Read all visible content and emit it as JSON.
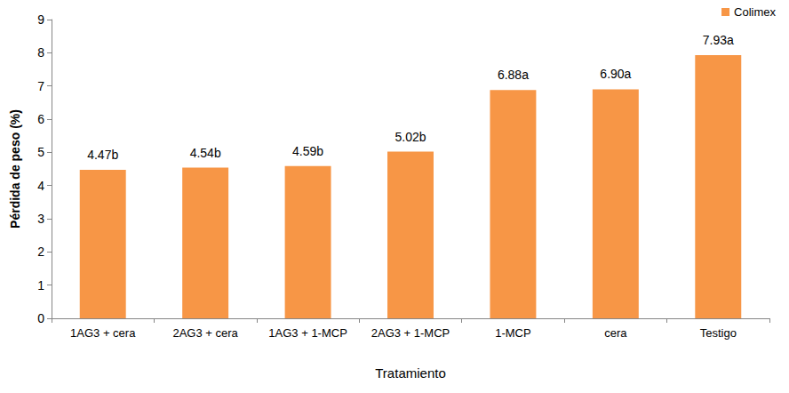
{
  "chart_data": {
    "type": "bar",
    "x_label": "Tratamiento",
    "y_label": "Pérdida de peso (%)",
    "categories": [
      "1AG3 + cera",
      "2AG3 + cera",
      "1AG3 + 1-MCP",
      "2AG3 + 1-MCP",
      "1-MCP",
      "cera",
      "Testigo"
    ],
    "series": [
      {
        "name": "Colimex",
        "color": "#f79646",
        "values": [
          4.47,
          4.54,
          4.59,
          5.02,
          6.88,
          6.9,
          7.93
        ],
        "value_labels": [
          "4.47b",
          "4.54b",
          "4.59b",
          "5.02b",
          "6.88a",
          "6.90a",
          "7.93a"
        ]
      }
    ],
    "ylim": [
      0,
      9
    ],
    "yticks": [
      0,
      1,
      2,
      3,
      4,
      5,
      6,
      7,
      8,
      9
    ],
    "grid": false,
    "legend": "top-right",
    "data_labels": true
  }
}
